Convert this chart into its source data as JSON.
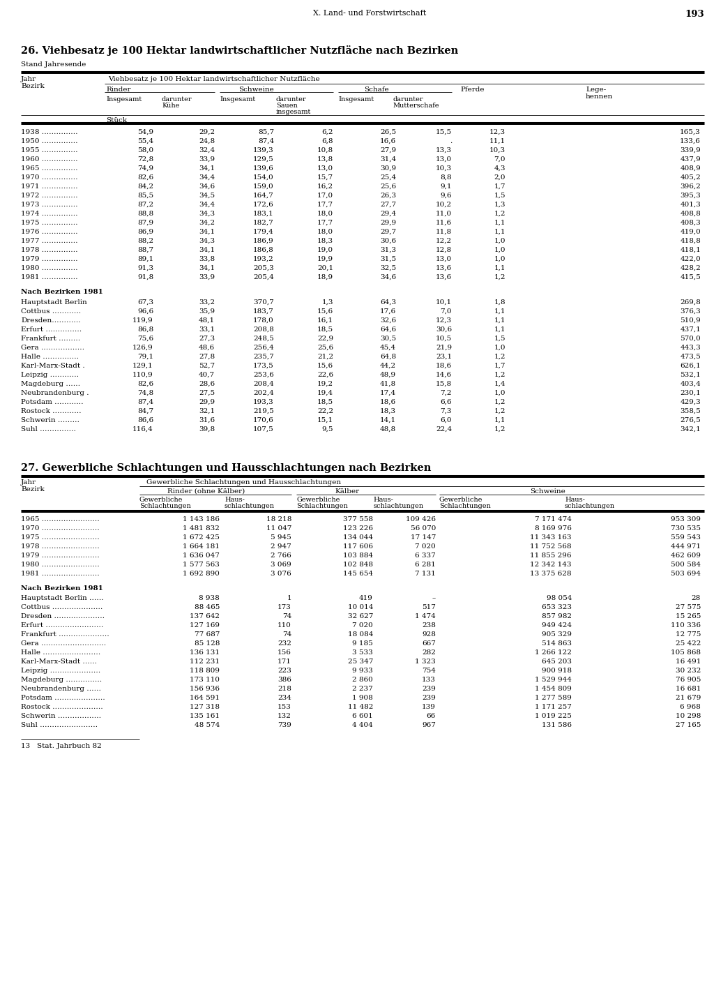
{
  "page_header": "X. Land- und Forstwirtschaft",
  "page_number": "193",
  "table1_title": "26. Viehbesatz je 100 Hektar landwirtschaftlicher Nutzfläche nach Bezirken",
  "table1_subtitle": "Stand Jahresende",
  "table1_col_header_row1": "Viehbesatz je 100 Hektar landwirtschaftlicher Nutzfläche",
  "table1_unit": "Stück",
  "table1_years": [
    [
      "1938 ……………",
      "54,9",
      "29,2",
      "85,7",
      "6,2",
      "26,5",
      "15,5",
      "12,3",
      "165,3"
    ],
    [
      "1950 ……………",
      "55,4",
      "24,8",
      "87,4",
      "6,8",
      "16,6",
      ".",
      "11,1",
      "133,6"
    ],
    [
      "1955 ……………",
      "58,0",
      "32,4",
      "139,3",
      "10,8",
      "27,9",
      "13,3",
      "10,3",
      "339,9"
    ],
    [
      "1960 ……………",
      "72,8",
      "33,9",
      "129,5",
      "13,8",
      "31,4",
      "13,0",
      "7,0",
      "437,9"
    ],
    [
      "1965 ……………",
      "74,9",
      "34,1",
      "139,6",
      "13,0",
      "30,9",
      "10,3",
      "4,3",
      "408,9"
    ],
    [
      "1970 ……………",
      "82,6",
      "34,4",
      "154,0",
      "15,7",
      "25,4",
      "8,8",
      "2,0",
      "405,2"
    ],
    [
      "1971 ……………",
      "84,2",
      "34,6",
      "159,0",
      "16,2",
      "25,6",
      "9,1",
      "1,7",
      "396,2"
    ],
    [
      "1972 ……………",
      "85,5",
      "34,5",
      "164,7",
      "17,0",
      "26,3",
      "9,6",
      "1,5",
      "395,3"
    ],
    [
      "1973 ……………",
      "87,2",
      "34,4",
      "172,6",
      "17,7",
      "27,7",
      "10,2",
      "1,3",
      "401,3"
    ],
    [
      "1974 ……………",
      "88,8",
      "34,3",
      "183,1",
      "18,0",
      "29,4",
      "11,0",
      "1,2",
      "408,8"
    ],
    [
      "1975 ……………",
      "87,9",
      "34,2",
      "182,7",
      "17,7",
      "29,9",
      "11,6",
      "1,1",
      "408,3"
    ],
    [
      "1976 ……………",
      "86,9",
      "34,1",
      "179,4",
      "18,0",
      "29,7",
      "11,8",
      "1,1",
      "419,0"
    ],
    [
      "1977 ……………",
      "88,2",
      "34,3",
      "186,9",
      "18,3",
      "30,6",
      "12,2",
      "1,0",
      "418,8"
    ],
    [
      "1978 ……………",
      "88,7",
      "34,1",
      "186,8",
      "19,0",
      "31,3",
      "12,8",
      "1,0",
      "418,1"
    ],
    [
      "1979 ……………",
      "89,1",
      "33,8",
      "193,2",
      "19,9",
      "31,5",
      "13,0",
      "1,0",
      "422,0"
    ],
    [
      "1980 ……………",
      "91,3",
      "34,1",
      "205,3",
      "20,1",
      "32,5",
      "13,6",
      "1,1",
      "428,2"
    ],
    [
      "1981 ……………",
      "91,8",
      "33,9",
      "205,4",
      "18,9",
      "34,6",
      "13,6",
      "1,2",
      "415,5"
    ]
  ],
  "table1_bezirken_header": "Nach Bezirken 1981",
  "table1_bezirken": [
    [
      "Hauptstadt Berlin",
      "67,3",
      "33,2",
      "370,7",
      "1,3",
      "64,3",
      "10,1",
      "1,8",
      "269,8"
    ],
    [
      "Cottbus …………",
      "96,6",
      "35,9",
      "183,7",
      "15,6",
      "17,6",
      "7,0",
      "1,1",
      "376,3"
    ],
    [
      "Dresden…………",
      "119,9",
      "48,1",
      "178,0",
      "16,1",
      "32,6",
      "12,3",
      "1,1",
      "510,9"
    ],
    [
      "Erfurt ……………",
      "86,8",
      "33,1",
      "208,8",
      "18,5",
      "64,6",
      "30,6",
      "1,1",
      "437,1"
    ],
    [
      "Frankfurt ………",
      "75,6",
      "27,3",
      "248,5",
      "22,9",
      "30,5",
      "10,5",
      "1,5",
      "570,0"
    ],
    [
      "Gera ………………",
      "126,9",
      "48,6",
      "256,4",
      "25,6",
      "45,4",
      "21,9",
      "1,0",
      "443,3"
    ],
    [
      "Halle ……………",
      "79,1",
      "27,8",
      "235,7",
      "21,2",
      "64,8",
      "23,1",
      "1,2",
      "473,5"
    ],
    [
      "Karl-Marx-Stadt .",
      "129,1",
      "52,7",
      "173,5",
      "15,6",
      "44,2",
      "18,6",
      "1,7",
      "626,1"
    ],
    [
      "Leipzig …………",
      "110,9",
      "40,7",
      "253,6",
      "22,6",
      "48,9",
      "14,6",
      "1,2",
      "532,1"
    ],
    [
      "Magdeburg ……",
      "82,6",
      "28,6",
      "208,4",
      "19,2",
      "41,8",
      "15,8",
      "1,4",
      "403,4"
    ],
    [
      "Neubrandenburg .",
      "74,8",
      "27,5",
      "202,4",
      "19,4",
      "17,4",
      "7,2",
      "1,0",
      "230,1"
    ],
    [
      "Potsdam …………",
      "87,4",
      "29,9",
      "193,3",
      "18,5",
      "18,6",
      "6,6",
      "1,2",
      "429,3"
    ],
    [
      "Rostock …………",
      "84,7",
      "32,1",
      "219,5",
      "22,2",
      "18,3",
      "7,3",
      "1,2",
      "358,5"
    ],
    [
      "Schwerin ………",
      "86,6",
      "31,6",
      "170,6",
      "15,1",
      "14,1",
      "6,0",
      "1,1",
      "276,5"
    ],
    [
      "Suhl ……………",
      "116,4",
      "39,8",
      "107,5",
      "9,5",
      "48,8",
      "22,4",
      "1,2",
      "342,1"
    ]
  ],
  "table2_title": "27. Gewerbliche Schlachtungen und Hausschlachtungen nach Bezirken",
  "table2_col_header_row1": "Gewerbliche Schlachtungen und Hausschlachtungen",
  "table2_years": [
    [
      "1965 ……………………",
      "1 143 186",
      "18 218",
      "377 558",
      "109 426",
      "7 171 474",
      "953 309"
    ],
    [
      "1970 ……………………",
      "1 481 832",
      "11 047",
      "123 226",
      "56 070",
      "8 169 976",
      "730 535"
    ],
    [
      "1975 ……………………",
      "1 672 425",
      "5 945",
      "134 044",
      "17 147",
      "11 343 163",
      "559 543"
    ],
    [
      "1978 ……………………",
      "1 664 181",
      "2 947",
      "117 606",
      "7 020",
      "11 752 568",
      "444 971"
    ],
    [
      "1979 ……………………",
      "1 636 047",
      "2 766",
      "103 884",
      "6 337",
      "11 855 296",
      "462 609"
    ],
    [
      "1980 ……………………",
      "1 577 563",
      "3 069",
      "102 848",
      "6 281",
      "12 342 143",
      "500 584"
    ],
    [
      "1981 ……………………",
      "1 692 890",
      "3 076",
      "145 654",
      "7 131",
      "13 375 628",
      "503 694"
    ]
  ],
  "table2_bezirken_header": "Nach Bezirken 1981",
  "table2_bezirken": [
    [
      "Hauptstadt Berlin ……",
      "8 938",
      "1",
      "419",
      "–",
      "98 054",
      "28"
    ],
    [
      "Cottbus …………………",
      "88 465",
      "173",
      "10 014",
      "517",
      "653 323",
      "27 575"
    ],
    [
      "Dresden …………………",
      "137 642",
      "74",
      "32 627",
      "1 474",
      "857 982",
      "15 265"
    ],
    [
      "Erfurt ……………………",
      "127 169",
      "110",
      "7 020",
      "238",
      "949 424",
      "110 336"
    ],
    [
      "Frankfurt …………………",
      "77 687",
      "74",
      "18 084",
      "928",
      "905 329",
      "12 775"
    ],
    [
      "Gera ………………………",
      "85 128",
      "232",
      "9 185",
      "667",
      "514 863",
      "25 422"
    ],
    [
      "Halle ……………………",
      "136 131",
      "156",
      "3 533",
      "282",
      "1 266 122",
      "105 868"
    ],
    [
      "Karl-Marx-Stadt ……",
      "112 231",
      "171",
      "25 347",
      "1 323",
      "645 203",
      "16 491"
    ],
    [
      "Leipzig …………………",
      "118 809",
      "223",
      "9 933",
      "754",
      "900 918",
      "30 232"
    ],
    [
      "Magdeburg ……………",
      "173 110",
      "386",
      "2 860",
      "133",
      "1 529 944",
      "76 905"
    ],
    [
      "Neubrandenburg ……",
      "156 936",
      "218",
      "2 237",
      "239",
      "1 454 809",
      "16 681"
    ],
    [
      "Potsdam …………………",
      "164 591",
      "234",
      "1 908",
      "239",
      "1 277 589",
      "21 679"
    ],
    [
      "Rostock …………………",
      "127 318",
      "153",
      "11 482",
      "139",
      "1 171 257",
      "6 968"
    ],
    [
      "Schwerin ………………",
      "135 161",
      "132",
      "6 601",
      "66",
      "1 019 225",
      "10 298"
    ],
    [
      "Suhl ……………………",
      "48 574",
      "739",
      "4 404",
      "967",
      "131 586",
      "27 165"
    ]
  ],
  "footer": "13   Stat. Jahrbuch 82"
}
